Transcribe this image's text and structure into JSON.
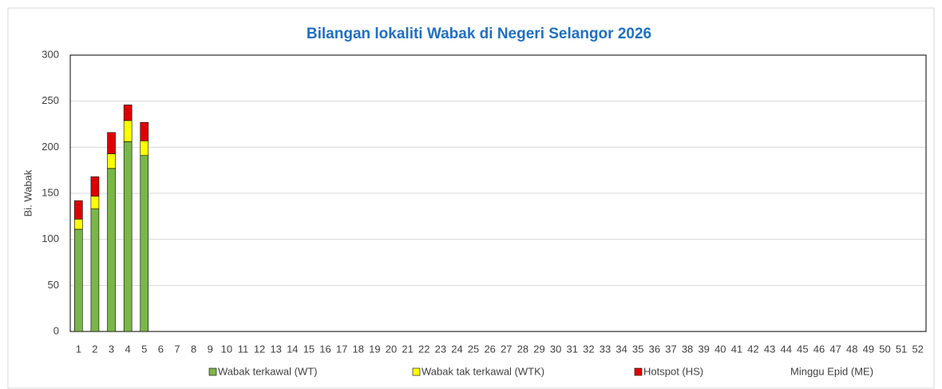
{
  "chart_data": {
    "type": "stacked-bar",
    "title": "Bilangan lokaliti Wabak di Negeri Selangor 2026",
    "y_label": "Bi. Wabak",
    "x_label": "Minggu Epid (ME)",
    "categories": [
      "1",
      "2",
      "3",
      "4",
      "5",
      "6",
      "7",
      "8",
      "9",
      "10",
      "11",
      "12",
      "13",
      "14",
      "15",
      "16",
      "17",
      "18",
      "19",
      "20",
      "21",
      "22",
      "23",
      "24",
      "25",
      "26",
      "27",
      "28",
      "29",
      "30",
      "31",
      "32",
      "33",
      "34",
      "35",
      "36",
      "37",
      "38",
      "39",
      "40",
      "41",
      "42",
      "43",
      "44",
      "45",
      "46",
      "47",
      "48",
      "49",
      "50",
      "51",
      "52"
    ],
    "series": [
      {
        "name": "Wabak terkawal (WT)",
        "color": "#7ab648",
        "values": [
          111,
          133,
          177,
          206,
          191,
          null,
          null,
          null,
          null,
          null,
          null,
          null,
          null,
          null,
          null,
          null,
          null,
          null,
          null,
          null,
          null,
          null,
          null,
          null,
          null,
          null,
          null,
          null,
          null,
          null,
          null,
          null,
          null,
          null,
          null,
          null,
          null,
          null,
          null,
          null,
          null,
          null,
          null,
          null,
          null,
          null,
          null,
          null,
          null,
          null,
          null,
          null
        ]
      },
      {
        "name": "Wabak tak terkawal (WTK)",
        "color": "#ffff00",
        "values": [
          11,
          14,
          16,
          23,
          16,
          null,
          null,
          null,
          null,
          null,
          null,
          null,
          null,
          null,
          null,
          null,
          null,
          null,
          null,
          null,
          null,
          null,
          null,
          null,
          null,
          null,
          null,
          null,
          null,
          null,
          null,
          null,
          null,
          null,
          null,
          null,
          null,
          null,
          null,
          null,
          null,
          null,
          null,
          null,
          null,
          null,
          null,
          null,
          null,
          null,
          null,
          null
        ]
      },
      {
        "name": "Hotspot (HS)",
        "color": "#e00000",
        "values": [
          20,
          21,
          23,
          17,
          20,
          null,
          null,
          null,
          null,
          null,
          null,
          null,
          null,
          null,
          null,
          null,
          null,
          null,
          null,
          null,
          null,
          null,
          null,
          null,
          null,
          null,
          null,
          null,
          null,
          null,
          null,
          null,
          null,
          null,
          null,
          null,
          null,
          null,
          null,
          null,
          null,
          null,
          null,
          null,
          null,
          null,
          null,
          null,
          null,
          null,
          null,
          null
        ]
      }
    ],
    "ylim": [
      0,
      300
    ],
    "yticks": [
      0,
      50,
      100,
      150,
      200,
      250,
      300
    ],
    "grid": true
  }
}
